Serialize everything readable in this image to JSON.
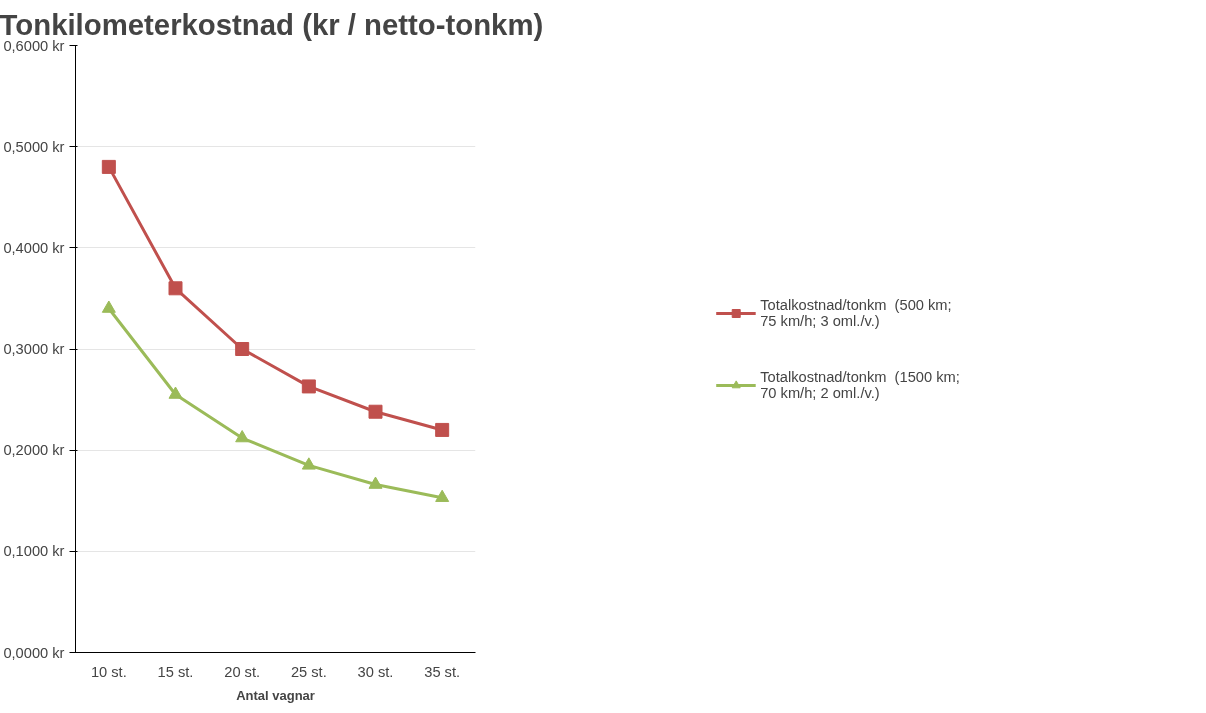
{
  "chart_data": {
    "type": "line",
    "title": "Tonkilometerkostnad  (kr / netto-tonkm)",
    "xlabel": "Antal vagnar",
    "categories": [
      "10 st.",
      "15 st.",
      "20 st.",
      "25 st.",
      "30 st.",
      "35 st."
    ],
    "ylim": [
      0,
      0.6
    ],
    "yticks": [
      {
        "value": 0,
        "label": "0,0000 kr"
      },
      {
        "value": 0.1,
        "label": "0,1000 kr"
      },
      {
        "value": 0.2,
        "label": "0,2000 kr"
      },
      {
        "value": 0.3,
        "label": "0,3000 kr"
      },
      {
        "value": 0.4,
        "label": "0,4000 kr"
      },
      {
        "value": 0.5,
        "label": "0,5000 kr"
      },
      {
        "value": 0.6,
        "label": "0,6000 kr"
      }
    ],
    "series": [
      {
        "name": "Totalkostnad/tonkm  (500 km;  75 km/h; 3 oml./v.)",
        "color": "#c0504d",
        "marker": "square",
        "values": [
          0.48,
          0.36,
          0.3,
          0.263,
          0.238,
          0.22
        ]
      },
      {
        "name": "Totalkostnad/tonkm  (1500 km;  70 km/h; 2 oml./v.)",
        "color": "#9bbb59",
        "marker": "triangle",
        "values": [
          0.34,
          0.255,
          0.212,
          0.185,
          0.166,
          0.153
        ]
      }
    ],
    "grid": "y",
    "legend": "right",
    "line_style": "solid"
  }
}
